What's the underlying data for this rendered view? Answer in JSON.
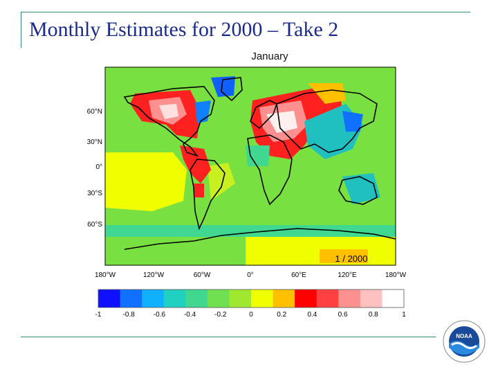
{
  "slide": {
    "title": "Monthly Estimates for 2000 – Take 2"
  },
  "map": {
    "title": "January",
    "date_stamp": "1 / 2000",
    "lat_labels": [
      "60°N",
      "30°N",
      "0°",
      "30°S",
      "60°S"
    ],
    "lon_labels": [
      "180°W",
      "120°W",
      "60°W",
      "0°",
      "60°E",
      "120°E",
      "180°W"
    ]
  },
  "colorbar": {
    "min": -1,
    "max": 1,
    "tick_labels": [
      "-1",
      "-0.8",
      "-0.6",
      "-0.4",
      "-0.2",
      "0",
      "0.2",
      "0.4",
      "0.6",
      "0.8",
      "1"
    ],
    "colors": [
      "#1010ff",
      "#1070ff",
      "#10b0ff",
      "#20d0c0",
      "#40d890",
      "#70e050",
      "#a0e830",
      "#f0ff00",
      "#ffc000",
      "#ff0000",
      "#ff4040",
      "#ff9090",
      "#ffc0c0",
      "#ffffff"
    ]
  },
  "colors": {
    "background": "#78e040",
    "accent": "#1a2a8a",
    "rule": "#2e8a7a"
  },
  "logo": {
    "text": "NOAA",
    "icon": "noaa-logo-icon"
  }
}
